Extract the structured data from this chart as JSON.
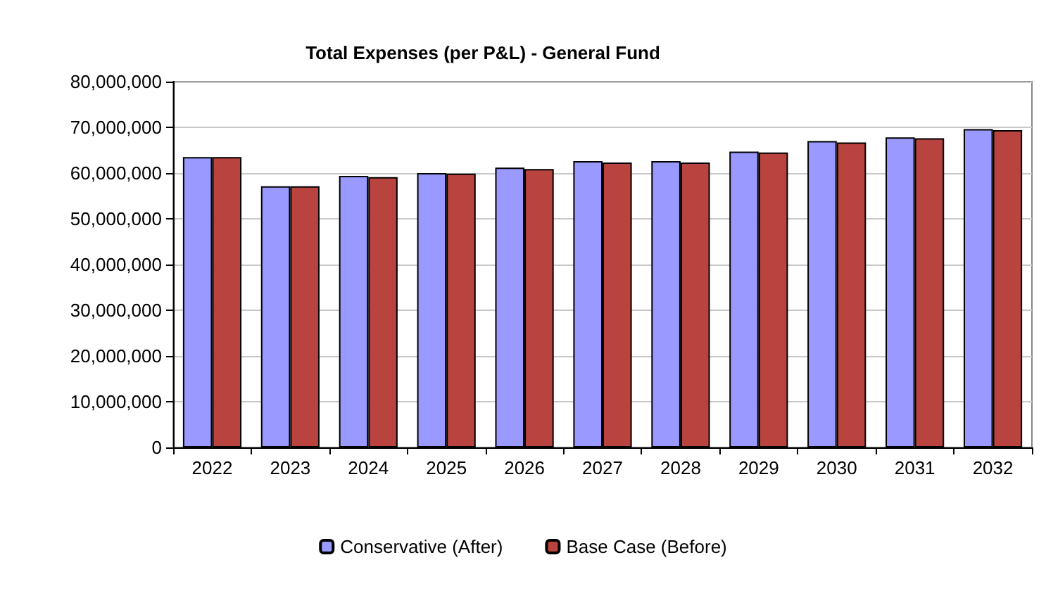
{
  "chart_data": {
    "type": "bar",
    "title": "Total Expenses (per P&L) - General Fund",
    "categories": [
      "2022",
      "2023",
      "2024",
      "2025",
      "2026",
      "2027",
      "2028",
      "2029",
      "2030",
      "2031",
      "2032"
    ],
    "series": [
      {
        "name": "Conservative (After)",
        "color": "#9999ff",
        "values": [
          63500000,
          57100000,
          59400000,
          60000000,
          61200000,
          62600000,
          62600000,
          64700000,
          67000000,
          67800000,
          69600000
        ]
      },
      {
        "name": "Base Case (Before)",
        "color": "#b8433f",
        "values": [
          63500000,
          57100000,
          59100000,
          59900000,
          60900000,
          62300000,
          62300000,
          64500000,
          66700000,
          67600000,
          69400000
        ]
      }
    ],
    "ylim": [
      0,
      80000000
    ],
    "yticks": [
      0,
      {
        "value": 10000000,
        "label": "10,000,000"
      },
      {
        "value": 20000000,
        "label": "20,000,000"
      },
      {
        "value": 30000000,
        "label": "30,000,000"
      },
      {
        "value": 40000000,
        "label": "40,000,000"
      },
      {
        "value": 50000000,
        "label": "50,000,000"
      },
      {
        "value": 60000000,
        "label": "60,000,000"
      },
      {
        "value": 70000000,
        "label": "70,000,000"
      },
      {
        "value": 80000000,
        "label": "80,000,000"
      }
    ],
    "grid": "y",
    "legend": "bottom"
  }
}
